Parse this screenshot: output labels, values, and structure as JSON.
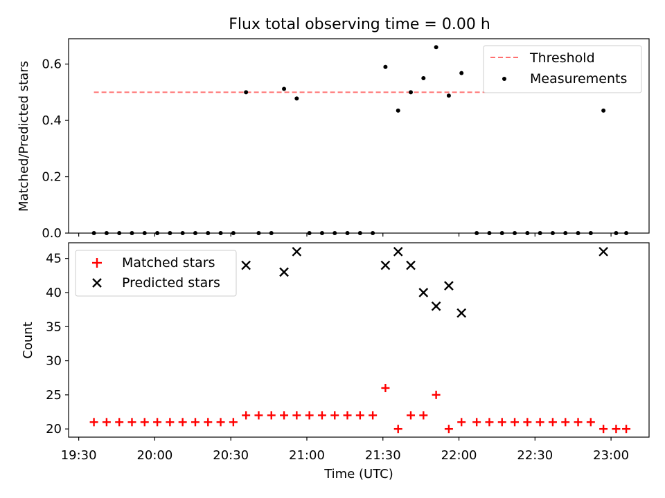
{
  "title": "Flux total observing time = 0.00 h",
  "colors": {
    "threshold": "#ff7070",
    "measurement": "#000000",
    "matched": "#ff0000",
    "predicted": "#000000"
  },
  "chart_data": [
    {
      "type": "scatter",
      "ylabel": "Matched/Predicted stars",
      "ylim": [
        0,
        0.69
      ],
      "yticks": [
        0.0,
        0.2,
        0.4,
        0.6
      ],
      "ytick_labels": [
        "0.0",
        "0.2",
        "0.4",
        "0.6"
      ],
      "xlim": [
        "19:26",
        "23:15"
      ],
      "legend_position": "top-right",
      "legend": [
        "Threshold",
        "Measurements"
      ],
      "threshold": {
        "name": "Threshold",
        "value": 0.5,
        "x_range": [
          "19:36",
          "23:05"
        ],
        "style": "dashed"
      },
      "series": [
        {
          "name": "Measurements",
          "marker": "dot",
          "x": [
            "19:36",
            "19:41",
            "19:46",
            "19:51",
            "19:56",
            "20:01",
            "20:06",
            "20:11",
            "20:16",
            "20:21",
            "20:26",
            "20:31",
            "20:36",
            "20:41",
            "20:46",
            "20:51",
            "20:56",
            "21:01",
            "21:06",
            "21:11",
            "21:16",
            "21:21",
            "21:26",
            "21:31",
            "21:36",
            "21:41",
            "21:46",
            "21:51",
            "21:56",
            "22:01",
            "22:07",
            "22:12",
            "22:17",
            "22:22",
            "22:27",
            "22:32",
            "22:37",
            "22:42",
            "22:47",
            "22:52",
            "22:57",
            "23:02",
            "23:06"
          ],
          "y": [
            0,
            0,
            0,
            0,
            0,
            0,
            0,
            0,
            0,
            0,
            0,
            0,
            0.5,
            0,
            0,
            0.512,
            0.478,
            0,
            0,
            0,
            0,
            0,
            0,
            0.59,
            0.435,
            0.5,
            0.55,
            0.66,
            0.488,
            0.568,
            0,
            0,
            0,
            0,
            0,
            0,
            0,
            0,
            0,
            0,
            0.435,
            0,
            0
          ]
        }
      ]
    },
    {
      "type": "scatter",
      "xlabel": "Time (UTC)",
      "ylabel": "Count",
      "ylim": [
        18.8,
        47.3
      ],
      "yticks": [
        20,
        25,
        30,
        35,
        40,
        45
      ],
      "ytick_labels": [
        "20",
        "25",
        "30",
        "35",
        "40",
        "45"
      ],
      "xlim": [
        "19:26",
        "23:15"
      ],
      "xticks": [
        "19:30",
        "20:00",
        "20:30",
        "21:00",
        "21:30",
        "22:00",
        "22:30",
        "23:00"
      ],
      "legend_position": "top-left",
      "legend": [
        "Matched stars",
        "Predicted stars"
      ],
      "series": [
        {
          "name": "Matched stars",
          "marker": "plus",
          "x": [
            "19:36",
            "19:41",
            "19:46",
            "19:51",
            "19:56",
            "20:01",
            "20:06",
            "20:11",
            "20:16",
            "20:21",
            "20:26",
            "20:31",
            "20:36",
            "20:41",
            "20:46",
            "20:51",
            "20:56",
            "21:01",
            "21:06",
            "21:11",
            "21:16",
            "21:21",
            "21:26",
            "21:31",
            "21:36",
            "21:41",
            "21:46",
            "21:51",
            "21:56",
            "22:01",
            "22:07",
            "22:12",
            "22:17",
            "22:22",
            "22:27",
            "22:32",
            "22:37",
            "22:42",
            "22:47",
            "22:52",
            "22:57",
            "23:02",
            "23:06"
          ],
          "y": [
            21,
            21,
            21,
            21,
            21,
            21,
            21,
            21,
            21,
            21,
            21,
            21,
            22,
            22,
            22,
            22,
            22,
            22,
            22,
            22,
            22,
            22,
            22,
            26,
            20,
            22,
            22,
            25,
            20,
            21,
            21,
            21,
            21,
            21,
            21,
            21,
            21,
            21,
            21,
            21,
            20,
            20,
            20
          ]
        },
        {
          "name": "Predicted stars",
          "marker": "x",
          "x": [
            "20:36",
            "20:51",
            "20:56",
            "21:31",
            "21:36",
            "21:41",
            "21:46",
            "21:51",
            "21:56",
            "22:01",
            "22:57"
          ],
          "y": [
            44,
            43,
            46,
            44,
            46,
            44,
            40,
            38,
            41,
            37,
            46
          ]
        }
      ]
    }
  ]
}
